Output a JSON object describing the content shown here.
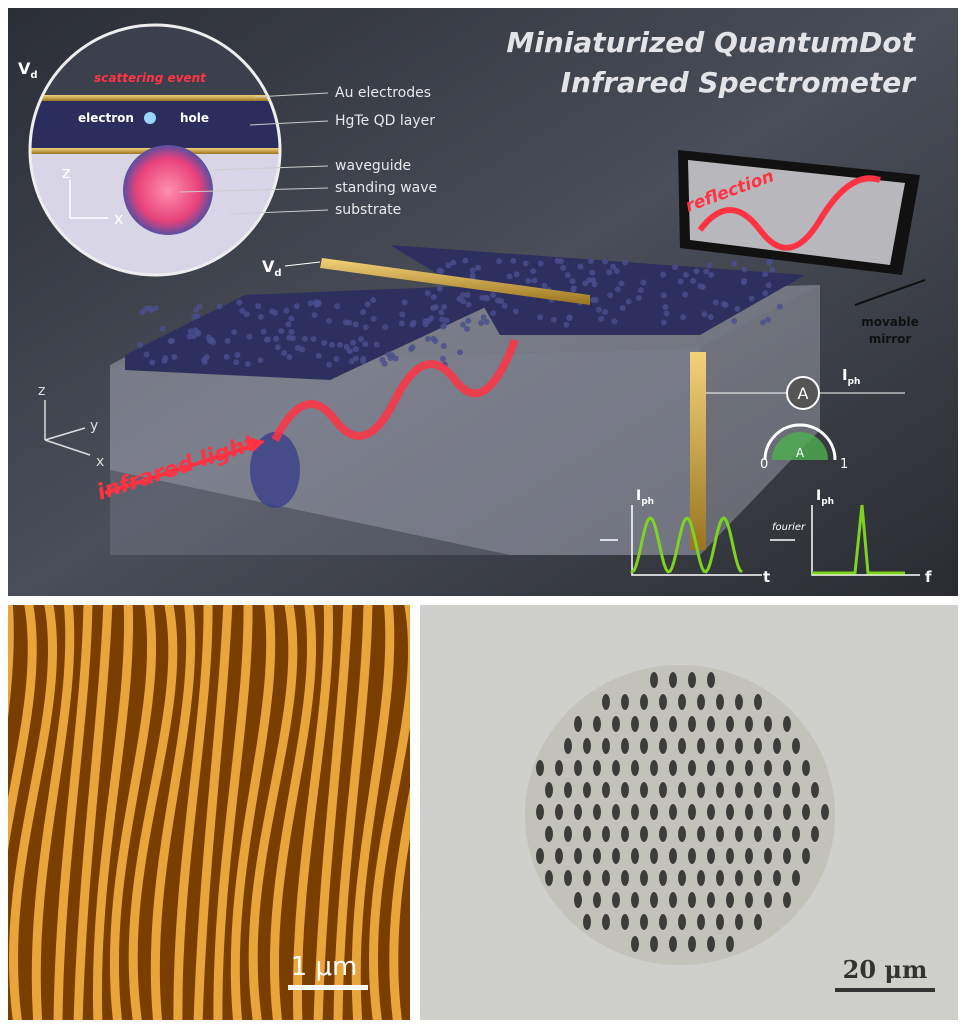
{
  "top_panel": {
    "title": [
      "Miniaturized QuantumDot",
      "Infrared Spectrometer"
    ],
    "inset": {
      "voltage": {
        "main": "V",
        "sub": "d"
      },
      "scattering": "scattering event",
      "electron": "electron",
      "hole": "hole",
      "labels": [
        "Au electrodes",
        "HgTe QD layer",
        "waveguide",
        "standing wave",
        "substrate"
      ],
      "axis_z": "z",
      "axis_x": "x"
    },
    "voltage": {
      "main": "V",
      "sub": "d"
    },
    "reflection": "reflection",
    "mirror": [
      "movable",
      "mirror"
    ],
    "ammeter": "A",
    "current": {
      "main": "I",
      "sub": "ph"
    },
    "gauge": {
      "low": "0",
      "high": "1",
      "symbol": "A"
    },
    "input": "infrared light",
    "axes": {
      "z": "z",
      "y": "y",
      "x": "x"
    },
    "signal_plot": {
      "y": {
        "main": "I",
        "sub": "ph"
      },
      "x": "t"
    },
    "transform": "fourier",
    "spectrum_plot": {
      "y": {
        "main": "I",
        "sub": "ph"
      },
      "x": "f"
    }
  },
  "afm_panel": {
    "scale": "1 μm"
  },
  "micro_panel": {
    "scale": "20 μm"
  }
}
